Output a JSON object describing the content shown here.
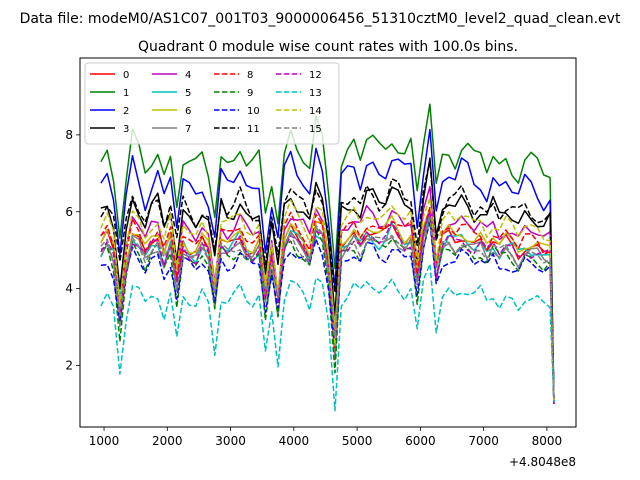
{
  "chart_data": {
    "type": "line",
    "suptitle": "Data file: modeM0/AS1C07_001T03_9000006456_51310cztM0_level2_quad_clean.evt",
    "title": "Quadrant 0 module wise count rates with 100.0s bins.",
    "xlabel": "",
    "ylabel": "",
    "x_offset_label": "+4.8048e8",
    "xlim": [
      620,
      8460
    ],
    "ylim": [
      0.4,
      10.0
    ],
    "x_ticks": [
      1000,
      2000,
      3000,
      4000,
      5000,
      6000,
      7000,
      8000
    ],
    "x_tick_labels": [
      "1000",
      "2000",
      "3000",
      "4000",
      "5000",
      "6000",
      "7000",
      "8000"
    ],
    "y_ticks": [
      2,
      4,
      6,
      8
    ],
    "y_tick_labels": [
      "2",
      "4",
      "6",
      "8"
    ],
    "legend_location": "upper-left",
    "legend_columns": 4,
    "series": [
      {
        "name": "0",
        "color": "#ff0000",
        "linestyle": "solid",
        "base": 5.1,
        "amp": 0.3
      },
      {
        "name": "1",
        "color": "#008000",
        "linestyle": "solid",
        "base": 7.2,
        "amp": 0.5
      },
      {
        "name": "2",
        "color": "#0000ff",
        "linestyle": "solid",
        "base": 6.6,
        "amp": 0.5
      },
      {
        "name": "3",
        "color": "#000000",
        "linestyle": "solid",
        "base": 5.9,
        "amp": 0.4
      },
      {
        "name": "4",
        "color": "#bf00bf",
        "linestyle": "solid",
        "base": 5.5,
        "amp": 0.3
      },
      {
        "name": "5",
        "color": "#00bfbf",
        "linestyle": "solid",
        "base": 5.0,
        "amp": 0.3
      },
      {
        "name": "6",
        "color": "#bfbf00",
        "linestyle": "solid",
        "base": 5.2,
        "amp": 0.3
      },
      {
        "name": "7",
        "color": "#808080",
        "linestyle": "solid",
        "base": 4.9,
        "amp": 0.3
      },
      {
        "name": "8",
        "color": "#ff0000",
        "linestyle": "dashed",
        "base": 5.3,
        "amp": 0.3
      },
      {
        "name": "9",
        "color": "#008000",
        "linestyle": "dashed",
        "base": 4.8,
        "amp": 0.3
      },
      {
        "name": "10",
        "color": "#0000ff",
        "linestyle": "dashed",
        "base": 4.6,
        "amp": 0.3
      },
      {
        "name": "11",
        "color": "#000000",
        "linestyle": "dashed",
        "base": 6.0,
        "amp": 0.4
      },
      {
        "name": "12",
        "color": "#bf00bf",
        "linestyle": "dashed",
        "base": 5.0,
        "amp": 0.3
      },
      {
        "name": "13",
        "color": "#00bfbf",
        "linestyle": "dashed",
        "base": 3.7,
        "amp": 0.3
      },
      {
        "name": "14",
        "color": "#bfbf00",
        "linestyle": "dashed",
        "base": 5.6,
        "amp": 0.3
      },
      {
        "name": "15",
        "color": "#808080",
        "linestyle": "dashed",
        "base": 4.9,
        "amp": 0.3
      }
    ],
    "x_points": [
      950,
      1050,
      1150,
      1250,
      1350,
      1450,
      1550,
      1650,
      1750,
      1850,
      1950,
      2050,
      2150,
      2250,
      2350,
      2450,
      2550,
      2650,
      2750,
      2850,
      2950,
      3050,
      3150,
      3250,
      3350,
      3450,
      3550,
      3650,
      3750,
      3850,
      3950,
      4050,
      4150,
      4250,
      4350,
      4450,
      4550,
      4650,
      4750,
      4850,
      4950,
      5050,
      5150,
      5250,
      5350,
      5450,
      5550,
      5650,
      5750,
      5850,
      5950,
      6050,
      6150,
      6250,
      6350,
      6450,
      6550,
      6650,
      6750,
      6850,
      6950,
      7050,
      7150,
      7250,
      7350,
      7450,
      7550,
      7650,
      7750,
      7850,
      7950,
      8050,
      8110
    ],
    "shape": [
      0.0,
      0.4,
      -0.3,
      -2.6,
      -0.6,
      0.7,
      0.3,
      -0.3,
      0.2,
      0.4,
      -0.5,
      0.3,
      -1.4,
      0.2,
      -0.1,
      -0.3,
      0.2,
      -0.2,
      -1.8,
      0.3,
      0.0,
      0.2,
      0.6,
      0.0,
      -0.2,
      0.1,
      -2.0,
      -0.4,
      -2.1,
      0.3,
      0.9,
      0.5,
      0.2,
      -0.3,
      1.1,
      0.7,
      -0.9,
      -3.8,
      0.1,
      0.3,
      0.6,
      0.2,
      0.8,
      0.7,
      0.4,
      0.5,
      1.0,
      0.7,
      0.3,
      0.5,
      -1.3,
      0.7,
      1.8,
      -1.0,
      0.2,
      0.5,
      0.3,
      0.6,
      0.4,
      0.1,
      0.3,
      -0.1,
      0.3,
      -0.1,
      0.2,
      0.0,
      -0.3,
      0.1,
      0.0,
      -0.1,
      -0.3,
      -0.2,
      -4.1
    ]
  }
}
